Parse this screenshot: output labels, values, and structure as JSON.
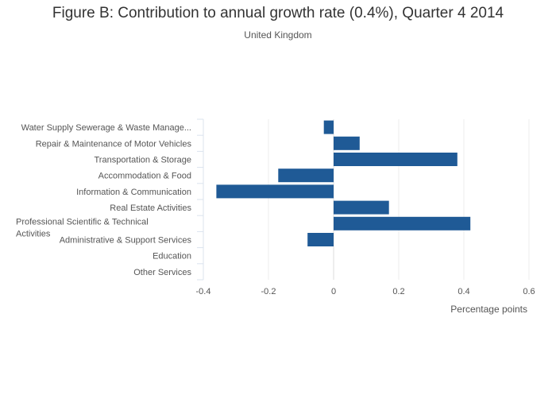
{
  "title": "Figure B: Contribution to annual growth rate (0.4%), Quarter 4 2014",
  "subtitle": "United Kingdom",
  "chart_data": {
    "type": "bar",
    "orientation": "horizontal",
    "title": "Figure B: Contribution to annual growth rate (0.4%), Quarter 4 2014",
    "subtitle": "United Kingdom",
    "xlabel": "Percentage points",
    "ylabel": "",
    "xlim": [
      -0.4,
      0.6
    ],
    "xticks": [
      "-0.4",
      "-0.2",
      "0",
      "0.2",
      "0.4",
      "0.6"
    ],
    "grid": true,
    "bar_color": "#1f5a96",
    "categories": [
      "Water Supply Sewerage & Waste Manage...",
      "Repair & Maintenance of Motor Vehicles",
      "Transportation & Storage",
      "Accommodation & Food",
      "Information & Communication",
      "Real Estate Activities",
      "Professional Scientific & Technical Activities",
      "Administrative & Support Services",
      "Education",
      "Other Services"
    ],
    "values": [
      -0.03,
      0.08,
      0.38,
      -0.17,
      -0.36,
      0.17,
      0.42,
      -0.08,
      0,
      0
    ]
  }
}
